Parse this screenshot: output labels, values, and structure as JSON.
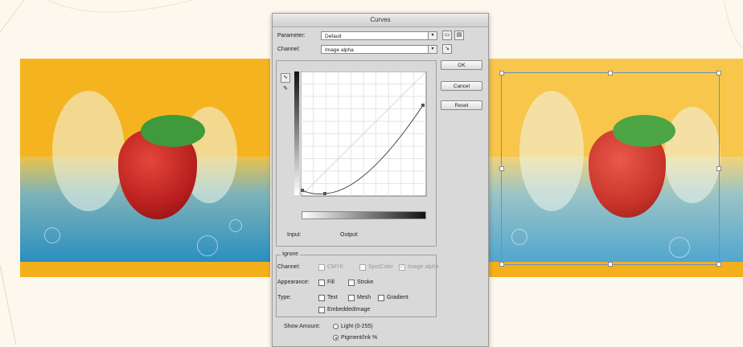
{
  "dialog": {
    "title": "Curves",
    "parameter_label": "Parameter:",
    "parameter_value": "Default",
    "channel_label": "Channel:",
    "channel_value": "Image alpha",
    "ok_label": "OK",
    "cancel_label": "Cancel",
    "reset_label": "Reset",
    "input_label": "Input:",
    "output_label": "Output:",
    "ignore_legend": "Ignore",
    "ignore_channel_label": "Channel:",
    "ignore_channels": [
      "CMYK",
      "SpotColor",
      "Image alpha"
    ],
    "appearance_label": "Appearance:",
    "appearance_options": [
      "Fill",
      "Stroke"
    ],
    "type_label": "Type:",
    "type_options": [
      "Text",
      "Mesh",
      "Gradient",
      "EmbeddedImage"
    ],
    "show_amount_label": "Show Amount:",
    "show_amount_options": [
      "Light (0-255)",
      "Pigment/Ink %"
    ],
    "show_amount_selected": "Pigment/Ink %"
  },
  "colors": {
    "background_orange": "#f4b01c",
    "water_blue": "#2a8fc0",
    "strawberry_red": "#c8271f",
    "dialog_gray": "#d9d9d9"
  },
  "icons": [
    "folder-open-icon",
    "save-preset-icon",
    "curve-edit-icon",
    "pencil-icon",
    "eyedropper-icon"
  ]
}
